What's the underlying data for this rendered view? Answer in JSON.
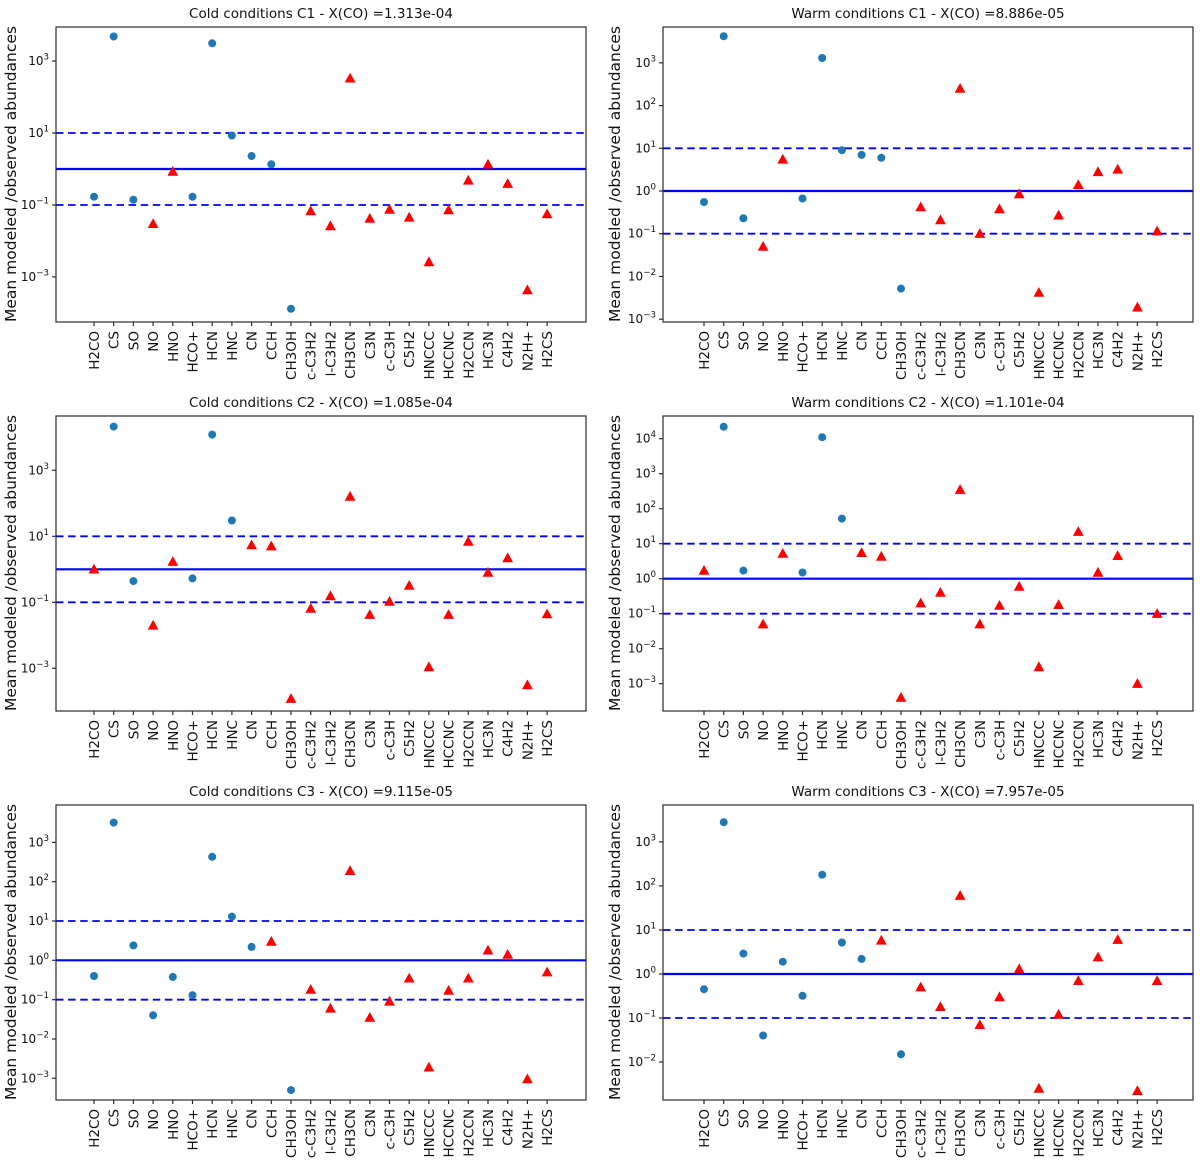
{
  "chart_data": {
    "type": "scatter",
    "y_scale": "log",
    "ylabel": "Mean modeled /observed abundances",
    "grid": "off",
    "legend": "none",
    "categories": [
      "H2CO",
      "CS",
      "SO",
      "NO",
      "HNO",
      "HCO+",
      "HCN",
      "HNC",
      "CN",
      "CCH",
      "CH3OH",
      "c-C3H2",
      "l-C3H2",
      "CH3CN",
      "C3N",
      "c-C3H",
      "C5H2",
      "HNCCC",
      "HCCNC",
      "H2CCN",
      "HC3N",
      "C4H2",
      "N2H+",
      "H2CS"
    ],
    "colors": {
      "circle_marker": "#1f77b4",
      "triangle_marker": "#ff0000",
      "reference_lines": "#0000ff",
      "axis": "#2b2b2b",
      "text": "#111111"
    },
    "reference_lines": {
      "solid_y": 1,
      "dashed_y": [
        10,
        0.1
      ]
    },
    "plots": [
      {
        "title": "Cold conditions C1 - X(CO) =1.313e-04",
        "ylim": [
          5.6e-05,
          8800
        ],
        "yticks": [
          1000.0,
          10.0,
          0.1,
          0.001
        ],
        "markers": [
          "circle",
          "circle",
          "circle",
          "triangle",
          "triangle",
          "circle",
          "circle",
          "circle",
          "circle",
          "circle",
          "circle",
          "triangle",
          "triangle",
          "triangle",
          "triangle",
          "triangle",
          "triangle",
          "triangle",
          "triangle",
          "triangle",
          "triangle",
          "triangle",
          "triangle",
          "triangle"
        ],
        "values": [
          0.17,
          4800,
          0.14,
          0.03,
          0.85,
          0.17,
          3100,
          8.5,
          2.3,
          1.35,
          0.00013,
          0.068,
          0.026,
          330,
          0.042,
          0.075,
          0.045,
          0.0026,
          0.072,
          0.48,
          1.35,
          0.39,
          0.00043,
          0.056
        ]
      },
      {
        "title": "Warm conditions C1 - X(CO) =8.886e-05",
        "ylim": [
          0.00086,
          6900
        ],
        "yticks": [
          1000.0,
          100.0,
          10.0,
          1.0,
          0.1,
          0.01,
          0.001
        ],
        "markers": [
          "circle",
          "circle",
          "circle",
          "triangle",
          "triangle",
          "circle",
          "circle",
          "circle",
          "circle",
          "circle",
          "circle",
          "triangle",
          "triangle",
          "triangle",
          "triangle",
          "triangle",
          "triangle",
          "triangle",
          "triangle",
          "triangle",
          "triangle",
          "triangle",
          "triangle",
          "triangle"
        ],
        "values": [
          0.55,
          4200,
          0.23,
          0.05,
          5.5,
          0.67,
          1300,
          9.0,
          7.0,
          6.0,
          0.0052,
          0.42,
          0.21,
          250,
          0.1,
          0.38,
          0.85,
          0.0042,
          0.27,
          1.4,
          2.8,
          3.2,
          0.0019,
          0.115
        ]
      },
      {
        "title": "Cold conditions C2 - X(CO) =1.085e-04",
        "ylim": [
          5.1e-05,
          44000
        ],
        "yticks": [
          1000.0,
          10.0,
          0.1,
          0.001
        ],
        "markers": [
          "triangle",
          "circle",
          "circle",
          "triangle",
          "triangle",
          "circle",
          "circle",
          "circle",
          "triangle",
          "triangle",
          "triangle",
          "triangle",
          "triangle",
          "triangle",
          "triangle",
          "triangle",
          "triangle",
          "triangle",
          "triangle",
          "triangle",
          "triangle",
          "triangle",
          "triangle",
          "triangle"
        ],
        "values": [
          1.0,
          21000,
          0.44,
          0.02,
          1.7,
          0.53,
          12000,
          30,
          5.4,
          5.0,
          0.00012,
          0.065,
          0.155,
          160,
          0.042,
          0.105,
          0.32,
          0.0011,
          0.042,
          6.9,
          0.8,
          2.2,
          0.00031,
          0.044
        ]
      },
      {
        "title": "Warm conditions C2 - X(CO) =1.101e-04",
        "ylim": [
          0.000166,
          44500
        ],
        "yticks": [
          10000.0,
          1000.0,
          100.0,
          10.0,
          1.0,
          0.1,
          0.01,
          0.001
        ],
        "markers": [
          "triangle",
          "circle",
          "circle",
          "triangle",
          "triangle",
          "circle",
          "circle",
          "circle",
          "triangle",
          "triangle",
          "triangle",
          "triangle",
          "triangle",
          "triangle",
          "triangle",
          "triangle",
          "triangle",
          "triangle",
          "triangle",
          "triangle",
          "triangle",
          "triangle",
          "triangle",
          "triangle"
        ],
        "values": [
          1.7,
          22000,
          1.7,
          0.05,
          5.2,
          1.5,
          11000,
          52,
          5.5,
          4.3,
          0.0004,
          0.2,
          0.4,
          350,
          0.05,
          0.17,
          0.6,
          0.003,
          0.18,
          22,
          1.5,
          4.5,
          0.001,
          0.1
        ]
      },
      {
        "title": "Cold conditions C3 - X(CO) =9.115e-05",
        "ylim": [
          0.00028,
          8950
        ],
        "yticks": [
          1000.0,
          100.0,
          10.0,
          1.0,
          0.1,
          0.01,
          0.001
        ],
        "markers": [
          "circle",
          "circle",
          "circle",
          "circle",
          "circle",
          "circle",
          "circle",
          "circle",
          "circle",
          "triangle",
          "circle",
          "triangle",
          "triangle",
          "triangle",
          "triangle",
          "triangle",
          "triangle",
          "triangle",
          "triangle",
          "triangle",
          "triangle",
          "triangle",
          "triangle",
          "triangle"
        ],
        "values": [
          0.4,
          3200,
          2.4,
          0.04,
          0.38,
          0.13,
          430,
          13,
          2.2,
          3.0,
          0.0005,
          0.18,
          0.06,
          190,
          0.035,
          0.09,
          0.35,
          0.0019,
          0.17,
          0.35,
          1.8,
          1.4,
          0.00095,
          0.5
        ]
      },
      {
        "title": "Warm conditions C3 - X(CO) =7.957e-05",
        "ylim": [
          0.00137,
          6900
        ],
        "yticks": [
          1000.0,
          100.0,
          10.0,
          1.0,
          0.1,
          0.01
        ],
        "markers": [
          "circle",
          "circle",
          "circle",
          "circle",
          "circle",
          "circle",
          "circle",
          "circle",
          "circle",
          "triangle",
          "circle",
          "triangle",
          "triangle",
          "triangle",
          "triangle",
          "triangle",
          "triangle",
          "triangle",
          "triangle",
          "triangle",
          "triangle",
          "triangle",
          "triangle",
          "triangle"
        ],
        "values": [
          0.45,
          2800,
          2.9,
          0.04,
          1.9,
          0.32,
          180,
          5.2,
          2.2,
          5.8,
          0.015,
          0.5,
          0.18,
          60,
          0.07,
          0.3,
          1.3,
          0.0025,
          0.12,
          0.7,
          2.4,
          6.0,
          0.0022,
          0.7
        ]
      }
    ]
  }
}
